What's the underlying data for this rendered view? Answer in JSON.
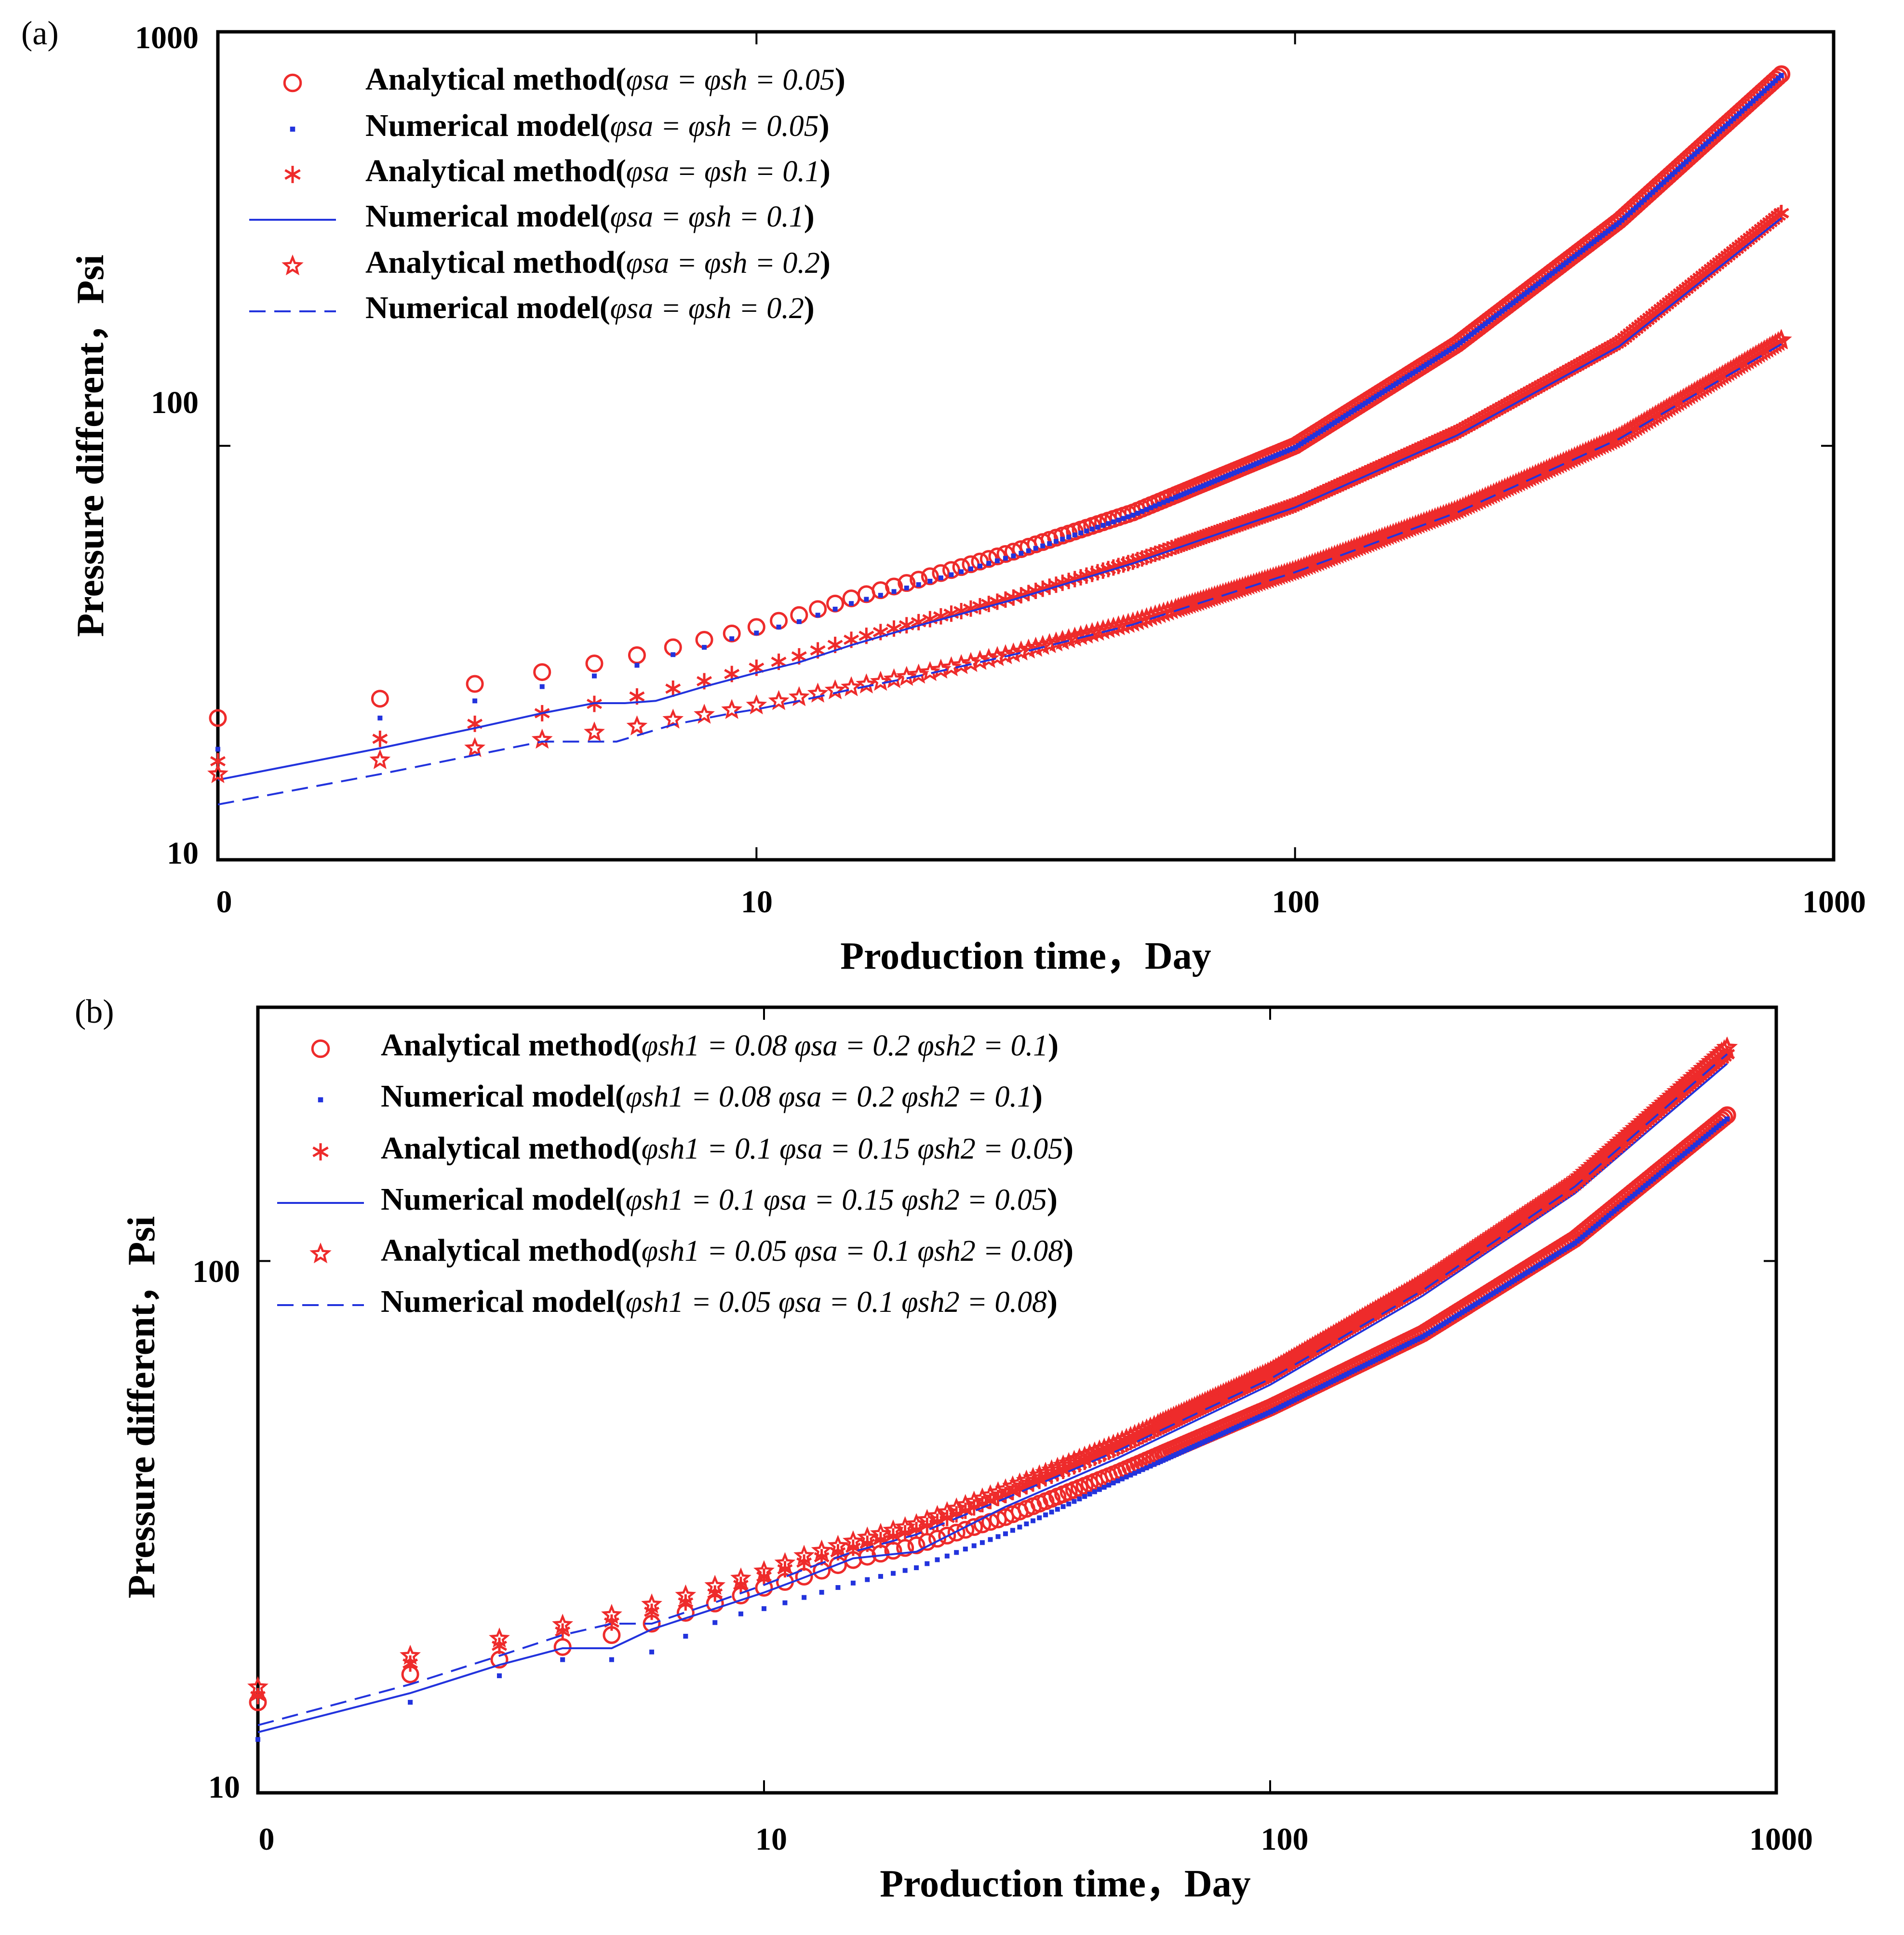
{
  "colors": {
    "analytical": "#ee2b2b",
    "numerical": "#2233dd",
    "axis": "#000000"
  },
  "chart_data": [
    {
      "panel": "(a)",
      "type": "scatter",
      "xscale": "log",
      "yscale": "log",
      "xlim": [
        1,
        1000
      ],
      "ylim": [
        10,
        1000
      ],
      "xticks": [
        "0",
        "10",
        "100",
        "1000"
      ],
      "yticks": [
        "10",
        "100",
        "1000"
      ],
      "xlabel": "Production time，Day",
      "ylabel": "Pressure different，Psi",
      "legend_position": "top-left",
      "series": [
        {
          "name": "Analytical method(φsa = φsh = 0.05)",
          "label_text": "Analytical method(",
          "params": "φsa = φsh = 0.05",
          "marker": "circle",
          "x": [
            1,
            2,
            3,
            4,
            5,
            6,
            7,
            8,
            9,
            10,
            12,
            15,
            20,
            30,
            50,
            100,
            200,
            400,
            800
          ],
          "y": [
            22,
            24.5,
            26.6,
            28.4,
            29.8,
            31.2,
            32.6,
            34,
            35.2,
            36.5,
            39,
            42.8,
            47.5,
            55.5,
            69,
            100,
            176,
            350,
            790
          ]
        },
        {
          "name": "Numerical model(φsa = φsh = 0.05)",
          "label_text": "Numerical model(",
          "params": "φsa = φsh = 0.05",
          "marker": "dot",
          "x": [
            1,
            2,
            3,
            4,
            5,
            6,
            7,
            8,
            9,
            10,
            12,
            15,
            20,
            30,
            50,
            100,
            200,
            400,
            800
          ],
          "y": [
            18.5,
            22,
            24.2,
            26.2,
            27.8,
            29.5,
            31.3,
            32.6,
            34.2,
            35.3,
            37.6,
            41.6,
            46.2,
            54.2,
            68,
            99,
            175,
            346,
            785
          ]
        },
        {
          "name": "Analytical method(φsa = φsh = 0.1)",
          "label_text": "Analytical method(",
          "params": "φsa = φsh = 0.1",
          "marker": "asterisk",
          "x": [
            1,
            2,
            3,
            4,
            5,
            6,
            7,
            8,
            9,
            10,
            12,
            15,
            20,
            30,
            50,
            100,
            200,
            400,
            800
          ],
          "y": [
            17.3,
            19.6,
            21.3,
            22.6,
            23.8,
            24.8,
            25.9,
            27,
            28.1,
            29.1,
            31,
            34,
            37.5,
            43,
            52.5,
            72,
            108,
            178,
            365
          ]
        },
        {
          "name": "Numerical model(φsa = φsh = 0.1)",
          "label_text": "Numerical model(",
          "params": "φsa = φsh = 0.1",
          "marker": "solid",
          "x": [
            1,
            2,
            3,
            4,
            5,
            5.7,
            6.5,
            8,
            10,
            12,
            15,
            20,
            30,
            50,
            100,
            200,
            400,
            800
          ],
          "y": [
            15.6,
            18.6,
            20.8,
            22.6,
            23.9,
            23.9,
            24.2,
            26.2,
            28.3,
            30,
            33,
            36.8,
            42.5,
            52,
            71,
            106,
            174,
            355
          ]
        },
        {
          "name": "Analytical method(φsa = φsh = 0.2)",
          "label_text": "Analytical method(",
          "params": "φsa = φsh = 0.2",
          "marker": "star",
          "x": [
            1,
            2,
            3,
            4,
            5,
            6,
            7,
            8,
            9,
            10,
            12,
            15,
            20,
            30,
            50,
            100,
            200,
            400,
            800
          ],
          "y": [
            16.1,
            17.4,
            18.6,
            19.5,
            20.3,
            21,
            21.8,
            22.4,
            23,
            23.6,
            24.7,
            26.1,
            28,
            31.5,
            37.4,
            50,
            70,
            105,
            180
          ]
        },
        {
          "name": "Numerical model(φsa = φsh = 0.2)",
          "label_text": "Numerical model(",
          "params": "φsa = φsh = 0.2",
          "marker": "dashed",
          "x": [
            1,
            2,
            3,
            4,
            5,
            5.5,
            7,
            9,
            10,
            12,
            15,
            20,
            30,
            50,
            100,
            200,
            400,
            800
          ],
          "y": [
            13.6,
            16.1,
            17.9,
            19.3,
            19.3,
            19.3,
            21.2,
            22.6,
            23.1,
            24.2,
            25.8,
            27.8,
            31.3,
            37,
            49.5,
            69,
            104,
            176
          ]
        }
      ]
    },
    {
      "panel": "(b)",
      "type": "scatter",
      "xscale": "log",
      "yscale": "log",
      "xlim": [
        1,
        1000
      ],
      "ylim": [
        10,
        300
      ],
      "xticks": [
        "0",
        "10",
        "100",
        "1000"
      ],
      "yticks": [
        "10",
        "100"
      ],
      "xlabel": "Production time，Day",
      "ylabel": "Pressure different，Psi",
      "legend_position": "top-left",
      "series": [
        {
          "name": "Analytical method(φsh1 = 0.08 φsa = 0.2 φsh2 = 0.1)",
          "label_text": "Analytical method(",
          "params": "φsh1 = 0.08 φsa = 0.2 φsh2 = 0.1",
          "marker": "circle",
          "x": [
            1,
            2,
            3,
            4,
            5,
            6,
            7,
            8,
            9,
            10,
            12,
            15,
            20,
            30,
            50,
            100,
            200,
            400,
            800
          ],
          "y": [
            14.8,
            16.7,
            17.8,
            18.8,
            19.8,
            20.8,
            21.8,
            22.7,
            23.5,
            24.3,
            25.5,
            27.4,
            29.2,
            33,
            40,
            53,
            73,
            110,
            188
          ]
        },
        {
          "name": "Numerical model(φsh1 = 0.08 φsa = 0.2 φsh2 = 0.1)",
          "label_text": "Numerical model(",
          "params": "φsh1 = 0.08 φsa = 0.2 φsh2 = 0.1",
          "marker": "dot",
          "x": [
            1,
            2,
            3,
            4,
            5,
            6,
            7,
            8,
            9,
            10,
            12,
            15,
            20,
            30,
            50,
            100,
            200,
            400,
            800
          ],
          "y": [
            12.6,
            14.8,
            16.6,
            17.8,
            17.8,
            18.4,
            19.7,
            20.9,
            21.7,
            22.2,
            23.3,
            24.8,
            26.5,
            30.7,
            38.6,
            52,
            72,
            108,
            185
          ]
        },
        {
          "name": "Analytical method(φsh1 = 0.1 φsa = 0.15 φsh2 = 0.05)",
          "label_text": "Analytical method(",
          "params": "φsh1 = 0.1 φsa = 0.15 φsh2 = 0.05",
          "marker": "asterisk",
          "x": [
            1,
            2,
            3,
            4,
            5,
            6,
            7,
            8,
            9,
            10,
            12,
            15,
            20,
            30,
            50,
            100,
            200,
            400,
            800
          ],
          "y": [
            15.2,
            17.5,
            18.9,
            20.1,
            20.9,
            21.9,
            22.8,
            23.7,
            24.6,
            25.5,
            27.1,
            28.9,
            31.2,
            36.3,
            44.5,
            61,
            90,
            140,
            245
          ]
        },
        {
          "name": "Numerical model(φsh1 = 0.1 φsa = 0.15 φsh2 = 0.05)",
          "label_text": "Numerical model(",
          "params": "φsh1 = 0.1 φsa = 0.15 φsh2 = 0.05",
          "marker": "solid",
          "x": [
            1,
            2,
            3,
            4,
            5,
            6,
            8,
            10,
            12,
            15,
            20,
            30,
            50,
            100,
            200,
            400,
            800
          ],
          "y": [
            13,
            15.4,
            17.4,
            18.7,
            18.7,
            20.3,
            22.2,
            23.8,
            25.4,
            27.6,
            28.4,
            34.5,
            42.6,
            58.5,
            86,
            134,
            235
          ]
        },
        {
          "name": "Analytical method(φsh1 = 0.05 φsa = 0.1 φsh2 = 0.08)",
          "label_text": "Analytical method(",
          "params": "φsh1 = 0.05 φsa = 0.1 φsh2 = 0.08",
          "marker": "star",
          "x": [
            1,
            2,
            3,
            4,
            5,
            6,
            7,
            8,
            9,
            10,
            12,
            15,
            20,
            30,
            50,
            100,
            200,
            400,
            800
          ],
          "y": [
            15.8,
            18.1,
            19.5,
            20.7,
            21.6,
            22.6,
            23.5,
            24.5,
            25.3,
            26.1,
            27.9,
            29.7,
            32,
            37.2,
            45.5,
            62,
            91,
            141,
            252
          ]
        },
        {
          "name": "Numerical model(φsh1 = 0.05 φsa = 0.1 φsh2 = 0.08)",
          "label_text": "Numerical model(",
          "params": "φsh1 = 0.05 φsa = 0.1 φsh2 = 0.08",
          "marker": "dashed",
          "x": [
            1,
            2,
            3,
            4,
            5,
            6,
            8,
            10,
            12,
            15,
            20,
            30,
            50,
            100,
            200,
            400,
            800
          ],
          "y": [
            13.4,
            16,
            18.1,
            19.8,
            20.8,
            20.8,
            22.8,
            24.6,
            26.3,
            28.4,
            30.6,
            35.8,
            44,
            60,
            88,
            138,
            245
          ]
        }
      ]
    }
  ]
}
